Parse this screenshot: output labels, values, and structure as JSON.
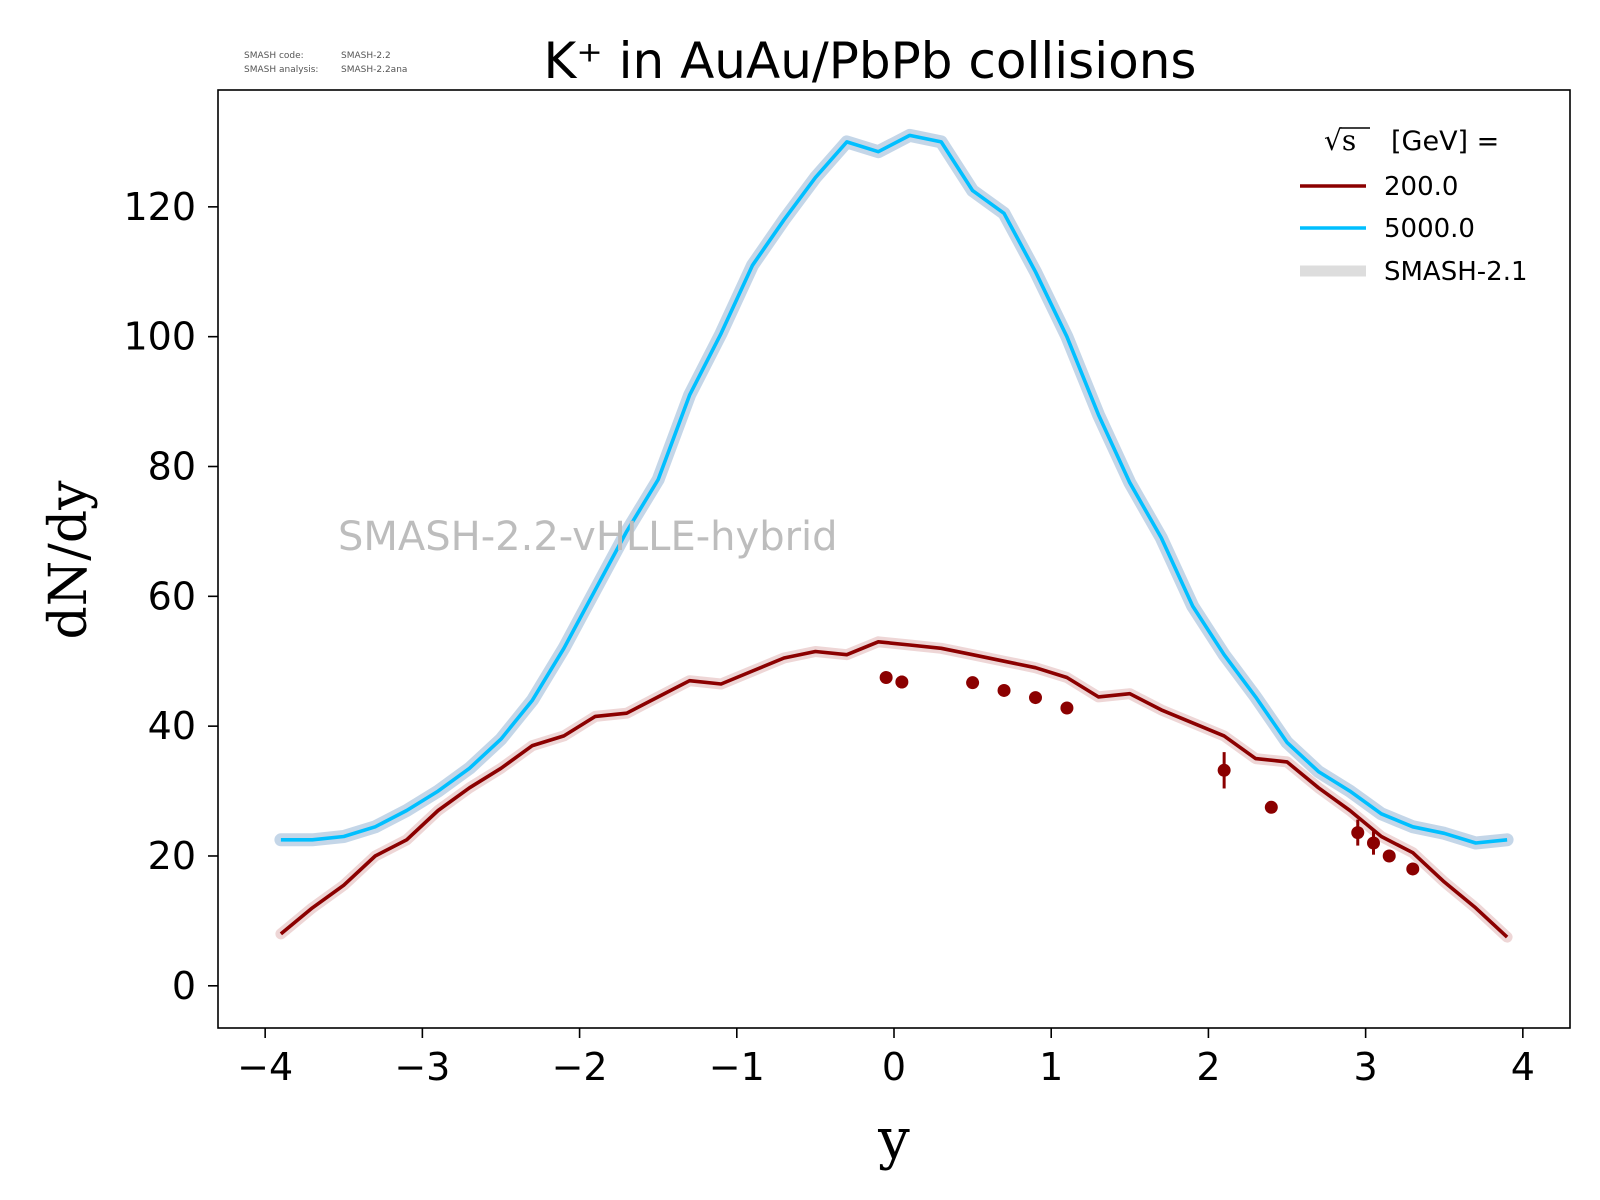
{
  "header": {
    "code_label": "SMASH code:",
    "code_value": "SMASH-2.2",
    "analysis_label": "SMASH analysis:",
    "analysis_value": "SMASH-2.2ana"
  },
  "watermark": "SMASH-2.2-vHLLE-hybrid",
  "legend": {
    "title_symbol": "√s",
    "title_text": "[GeV] ="
  },
  "colors": {
    "series_200": "#8b0000",
    "series_5000": "#00bfff",
    "band_200": "#e8c8c8",
    "band_5000": "#b0c8e0",
    "legend_band": "#dddddd",
    "watermark": "#bdbdbd"
  },
  "chart_data": {
    "type": "line",
    "title": "K⁺ in AuAu/PbPb collisions",
    "xlabel": "y",
    "ylabel": "dN/dy",
    "xlim": [
      -4.3,
      4.3
    ],
    "ylim": [
      -6.5,
      138
    ],
    "xticks": [
      -4,
      -3,
      -2,
      -1,
      0,
      1,
      2,
      3,
      4
    ],
    "xtick_labels": [
      "−4",
      "−3",
      "−2",
      "−1",
      "0",
      "1",
      "2",
      "3",
      "4"
    ],
    "yticks": [
      0,
      20,
      40,
      60,
      80,
      100,
      120
    ],
    "ytick_labels": [
      "0",
      "20",
      "40",
      "60",
      "80",
      "100",
      "120"
    ],
    "legend_position": "top-right",
    "grid": false,
    "series": [
      {
        "name": "200.0",
        "x": [
          -3.9,
          -3.7,
          -3.5,
          -3.3,
          -3.1,
          -2.9,
          -2.7,
          -2.5,
          -2.3,
          -2.1,
          -1.9,
          -1.7,
          -1.5,
          -1.3,
          -1.1,
          -0.9,
          -0.7,
          -0.5,
          -0.3,
          -0.1,
          0.1,
          0.3,
          0.5,
          0.7,
          0.9,
          1.1,
          1.3,
          1.5,
          1.7,
          1.9,
          2.1,
          2.3,
          2.5,
          2.7,
          2.9,
          3.1,
          3.3,
          3.5,
          3.7,
          3.9
        ],
        "y": [
          8,
          12,
          15.5,
          20,
          22.5,
          27,
          30.5,
          33.5,
          37,
          38.5,
          41.5,
          42,
          44.5,
          47,
          46.5,
          48.5,
          50.5,
          51.5,
          51,
          53,
          52.5,
          52,
          51,
          50,
          49,
          47.5,
          44.5,
          45,
          42.5,
          40.5,
          38.5,
          35,
          34.5,
          30.5,
          27,
          23,
          20.5,
          16,
          12,
          7.5
        ]
      },
      {
        "name": "5000.0",
        "x": [
          -3.9,
          -3.7,
          -3.5,
          -3.3,
          -3.1,
          -2.9,
          -2.7,
          -2.5,
          -2.3,
          -2.1,
          -1.9,
          -1.7,
          -1.5,
          -1.3,
          -1.1,
          -0.9,
          -0.7,
          -0.5,
          -0.3,
          -0.1,
          0.1,
          0.3,
          0.5,
          0.7,
          0.9,
          1.1,
          1.3,
          1.5,
          1.7,
          1.9,
          2.1,
          2.3,
          2.5,
          2.7,
          2.9,
          3.1,
          3.3,
          3.5,
          3.7,
          3.9
        ],
        "y": [
          22.5,
          22.5,
          23,
          24.5,
          27,
          30,
          33.5,
          38,
          44,
          52,
          61,
          70,
          78,
          91,
          100.5,
          111,
          118,
          124.5,
          130,
          128.5,
          131,
          130,
          122.5,
          119,
          110,
          100,
          88,
          77.5,
          69,
          58.5,
          51,
          44.5,
          37.5,
          33,
          30,
          26.5,
          24.5,
          23.5,
          22,
          22.5
        ]
      },
      {
        "name": "SMASH-2.1"
      }
    ],
    "points_200": {
      "x": [
        -0.05,
        0.05,
        0.5,
        0.7,
        0.9,
        1.1,
        2.1,
        2.4,
        2.95,
        3.05,
        3.15,
        3.3
      ],
      "y": [
        47.5,
        46.8,
        46.7,
        45.5,
        44.4,
        42.8,
        33.2,
        27.5,
        23.6,
        22,
        20,
        18
      ],
      "err": [
        0.5,
        1,
        0.5,
        0.5,
        0.5,
        0.5,
        2.8,
        0.8,
        2,
        1.8,
        0.6,
        0.6
      ]
    }
  }
}
